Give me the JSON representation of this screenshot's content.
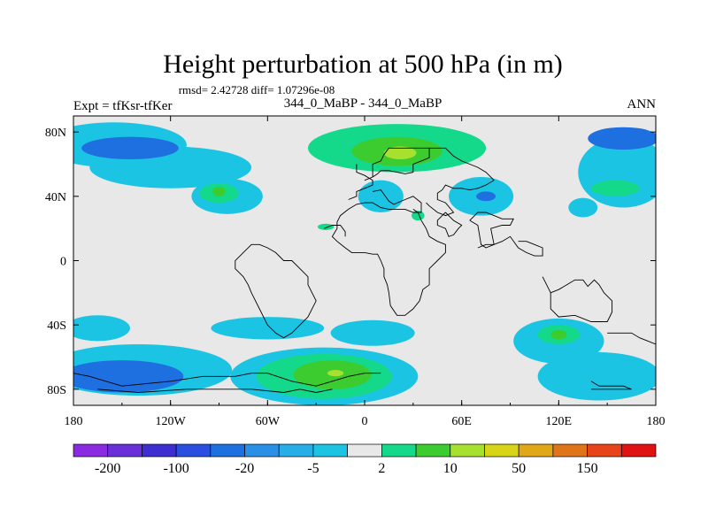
{
  "chart_data": {
    "type": "heatmap",
    "title": "Height perturbation at 500 hPa (in m)",
    "stats": "rmsd= 2.42728 diff= 1.07296e-08",
    "left_label": "Expt = tfKsr-tfKer",
    "center_label": "344_0_MaBP - 344_0_MaBP",
    "right_label": "ANN",
    "xlim": [
      -180,
      180
    ],
    "ylim": [
      -90,
      90
    ],
    "x_ticks": [
      {
        "value": -180,
        "label": "180"
      },
      {
        "value": -120,
        "label": "120W"
      },
      {
        "value": -60,
        "label": "60W"
      },
      {
        "value": 0,
        "label": "0"
      },
      {
        "value": 60,
        "label": "60E"
      },
      {
        "value": 120,
        "label": "120E"
      },
      {
        "value": 180,
        "label": "180"
      }
    ],
    "y_ticks": [
      {
        "value": 80,
        "label": "80N"
      },
      {
        "value": 40,
        "label": "40N"
      },
      {
        "value": 0,
        "label": "0"
      },
      {
        "value": -40,
        "label": "40S"
      },
      {
        "value": -80,
        "label": "80S"
      }
    ],
    "colorbar": {
      "colors": [
        "#8a2be2",
        "#6a2fd8",
        "#3c2ed0",
        "#2a4fe0",
        "#1e6fe0",
        "#2a90e6",
        "#28aee6",
        "#1cc4e4",
        "#e8e8e8",
        "#14d98a",
        "#3ccc30",
        "#a8e030",
        "#d8d418",
        "#e0a818",
        "#e07418",
        "#e8441c",
        "#e01212"
      ],
      "labels": [
        "-200",
        "-100",
        "-20",
        "-5",
        "2",
        "10",
        "50",
        "150"
      ]
    },
    "contour_regions": [
      {
        "level": -5,
        "lon": -155,
        "lat": 72,
        "rlon": 45,
        "rlat": 14
      },
      {
        "level": -5,
        "lon": -120,
        "lat": 58,
        "rlon": 50,
        "rlat": 13
      },
      {
        "level": -5,
        "lon": -85,
        "lat": 40,
        "rlon": 22,
        "rlat": 11
      },
      {
        "level": -20,
        "lon": -145,
        "lat": 70,
        "rlon": 30,
        "rlat": 7
      },
      {
        "level": 2,
        "lon": -90,
        "lat": 42,
        "rlon": 12,
        "rlat": 6
      },
      {
        "level": 10,
        "lon": -90,
        "lat": 43,
        "rlon": 4,
        "rlat": 3
      },
      {
        "level": 2,
        "lon": 20,
        "lat": 70,
        "rlon": 55,
        "rlat": 15
      },
      {
        "level": 10,
        "lon": 20,
        "lat": 68,
        "rlon": 28,
        "rlat": 9
      },
      {
        "level": 50,
        "lon": 22,
        "lat": 67,
        "rlon": 10,
        "rlat": 4
      },
      {
        "level": -5,
        "lon": 72,
        "lat": 40,
        "rlon": 20,
        "rlat": 12
      },
      {
        "level": -20,
        "lon": 75,
        "lat": 40,
        "rlon": 6,
        "rlat": 3
      },
      {
        "level": -5,
        "lon": 135,
        "lat": 33,
        "rlon": 9,
        "rlat": 6
      },
      {
        "level": -5,
        "lon": 160,
        "lat": 55,
        "rlon": 28,
        "rlat": 22
      },
      {
        "level": 2,
        "lon": 155,
        "lat": 45,
        "rlon": 15,
        "rlat": 5
      },
      {
        "level": -20,
        "lon": 160,
        "lat": 76,
        "rlon": 22,
        "rlat": 7
      },
      {
        "level": -5,
        "lon": 10,
        "lat": 40,
        "rlon": 14,
        "rlat": 10
      },
      {
        "level": 2,
        "lon": 33,
        "lat": 28,
        "rlon": 4,
        "rlat": 3
      },
      {
        "level": 2,
        "lon": -24,
        "lat": 21,
        "rlon": 5,
        "rlat": 2
      },
      {
        "level": -5,
        "lon": -165,
        "lat": -42,
        "rlon": 20,
        "rlat": 8
      },
      {
        "level": -5,
        "lon": -60,
        "lat": -42,
        "rlon": 35,
        "rlat": 7
      },
      {
        "level": -5,
        "lon": 5,
        "lat": -45,
        "rlon": 26,
        "rlat": 8
      },
      {
        "level": -5,
        "lon": -140,
        "lat": -68,
        "rlon": 58,
        "rlat": 16
      },
      {
        "level": -20,
        "lon": -150,
        "lat": -72,
        "rlon": 38,
        "rlat": 10
      },
      {
        "level": -5,
        "lon": -25,
        "lat": -72,
        "rlon": 58,
        "rlat": 18
      },
      {
        "level": 2,
        "lon": -25,
        "lat": -72,
        "rlon": 42,
        "rlat": 14
      },
      {
        "level": 10,
        "lon": -20,
        "lat": -71,
        "rlon": 24,
        "rlat": 9
      },
      {
        "level": 50,
        "lon": -18,
        "lat": -70,
        "rlon": 5,
        "rlat": 2
      },
      {
        "level": -5,
        "lon": 120,
        "lat": -50,
        "rlon": 28,
        "rlat": 14
      },
      {
        "level": 2,
        "lon": 120,
        "lat": -46,
        "rlon": 13,
        "rlat": 6
      },
      {
        "level": 10,
        "lon": 120,
        "lat": -46,
        "rlon": 5,
        "rlat": 3
      },
      {
        "level": -5,
        "lon": 145,
        "lat": -72,
        "rlon": 38,
        "rlat": 15
      },
      {
        "level": -5,
        "lon": -160,
        "lat": -45,
        "rlon": 5,
        "rlat": 3
      }
    ],
    "coastlines": [
      [
        [
          5,
          43
        ],
        [
          10,
          44
        ],
        [
          15,
          37
        ],
        [
          18,
          35
        ],
        [
          25,
          38
        ],
        [
          30,
          40
        ],
        [
          35,
          36
        ],
        [
          35,
          30
        ],
        [
          30,
          30
        ],
        [
          25,
          32
        ],
        [
          15,
          32
        ],
        [
          10,
          33
        ],
        [
          5,
          36
        ],
        [
          0,
          36
        ],
        [
          -5,
          35
        ],
        [
          -10,
          32
        ],
        [
          -15,
          28
        ],
        [
          -17,
          24
        ],
        [
          -17,
          20
        ],
        [
          -20,
          15
        ],
        [
          -17,
          12
        ],
        [
          -12,
          8
        ],
        [
          -8,
          5
        ],
        [
          0,
          5
        ],
        [
          5,
          4
        ],
        [
          8,
          4
        ],
        [
          10,
          0
        ],
        [
          12,
          -5
        ],
        [
          12,
          -10
        ],
        [
          14,
          -15
        ],
        [
          15,
          -20
        ],
        [
          16,
          -28
        ],
        [
          20,
          -34
        ],
        [
          25,
          -34
        ],
        [
          30,
          -30
        ],
        [
          34,
          -25
        ],
        [
          36,
          -18
        ],
        [
          40,
          -15
        ],
        [
          40,
          -10
        ],
        [
          40,
          -5
        ],
        [
          45,
          0
        ],
        [
          50,
          5
        ],
        [
          50,
          10
        ],
        [
          45,
          12
        ],
        [
          40,
          15
        ],
        [
          38,
          20
        ],
        [
          35,
          25
        ],
        [
          33,
          30
        ],
        [
          30,
          32
        ]
      ],
      [
        [
          0,
          50
        ],
        [
          5,
          52
        ],
        [
          5,
          60
        ],
        [
          10,
          62
        ],
        [
          12,
          66
        ],
        [
          15,
          70
        ],
        [
          25,
          70
        ],
        [
          30,
          70
        ],
        [
          40,
          70
        ],
        [
          40,
          64
        ],
        [
          35,
          62
        ],
        [
          30,
          60
        ],
        [
          30,
          55
        ],
        [
          25,
          54
        ],
        [
          20,
          55
        ],
        [
          15,
          56
        ],
        [
          10,
          56
        ],
        [
          8,
          54
        ],
        [
          5,
          52
        ]
      ],
      [
        [
          40,
          70
        ],
        [
          50,
          70
        ],
        [
          55,
          65
        ],
        [
          60,
          62
        ],
        [
          65,
          60
        ],
        [
          70,
          58
        ],
        [
          75,
          55
        ],
        [
          80,
          50
        ],
        [
          75,
          47
        ],
        [
          70,
          45
        ],
        [
          65,
          44
        ],
        [
          60,
          45
        ],
        [
          55,
          45
        ],
        [
          50,
          47
        ],
        [
          48,
          44
        ],
        [
          45,
          42
        ],
        [
          45,
          38
        ],
        [
          50,
          36
        ],
        [
          55,
          30
        ],
        [
          50,
          28
        ],
        [
          45,
          30
        ],
        [
          40,
          34
        ],
        [
          38,
          36
        ]
      ],
      [
        [
          50,
          30
        ],
        [
          55,
          25
        ],
        [
          60,
          22
        ],
        [
          58,
          20
        ],
        [
          55,
          16
        ],
        [
          52,
          15
        ],
        [
          50,
          20
        ],
        [
          45,
          22
        ],
        [
          45,
          25
        ],
        [
          48,
          28
        ],
        [
          50,
          30
        ]
      ],
      [
        [
          70,
          8
        ],
        [
          75,
          10
        ],
        [
          80,
          10
        ],
        [
          85,
          12
        ],
        [
          90,
          15
        ],
        [
          95,
          8
        ],
        [
          100,
          5
        ],
        [
          105,
          3
        ],
        [
          110,
          3
        ],
        [
          110,
          8
        ],
        [
          105,
          10
        ],
        [
          100,
          12
        ],
        [
          95,
          12
        ]
      ],
      [
        [
          65,
          25
        ],
        [
          70,
          22
        ],
        [
          72,
          10
        ],
        [
          75,
          8
        ],
        [
          80,
          10
        ],
        [
          78,
          20
        ],
        [
          85,
          22
        ],
        [
          90,
          22
        ],
        [
          92,
          26
        ],
        [
          85,
          26
        ],
        [
          80,
          28
        ],
        [
          75,
          30
        ],
        [
          70,
          30
        ],
        [
          65,
          25
        ]
      ],
      [
        [
          110,
          -10
        ],
        [
          115,
          -20
        ],
        [
          115,
          -30
        ],
        [
          120,
          -35
        ],
        [
          130,
          -34
        ],
        [
          140,
          -38
        ],
        [
          150,
          -38
        ],
        [
          153,
          -32
        ],
        [
          153,
          -25
        ],
        [
          148,
          -20
        ],
        [
          145,
          -15
        ],
        [
          142,
          -12
        ],
        [
          138,
          -16
        ],
        [
          135,
          -12
        ],
        [
          130,
          -12
        ],
        [
          125,
          -15
        ],
        [
          120,
          -18
        ],
        [
          115,
          -20
        ]
      ],
      [
        [
          150,
          -45
        ],
        [
          165,
          -45
        ],
        [
          170,
          -48
        ],
        [
          175,
          -50
        ],
        [
          180,
          -52
        ]
      ],
      [
        [
          140,
          -75
        ],
        [
          145,
          -78
        ],
        [
          155,
          -78
        ],
        [
          160,
          -78
        ],
        [
          165,
          -80
        ],
        [
          150,
          -80
        ],
        [
          140,
          -80
        ]
      ],
      [
        [
          -180,
          -70
        ],
        [
          -170,
          -72
        ],
        [
          -160,
          -75
        ],
        [
          -150,
          -78
        ],
        [
          -120,
          -75
        ],
        [
          -100,
          -72
        ],
        [
          -80,
          -72
        ],
        [
          -70,
          -70
        ],
        [
          -60,
          -70
        ],
        [
          -45,
          -75
        ],
        [
          -30,
          -78
        ],
        [
          -20,
          -75
        ],
        [
          -10,
          -72
        ],
        [
          0,
          -70
        ],
        [
          10,
          -70
        ]
      ],
      [
        [
          -165,
          -80
        ],
        [
          -140,
          -82
        ],
        [
          -110,
          -80
        ],
        [
          -90,
          -80
        ],
        [
          -70,
          -80
        ],
        [
          -50,
          -82
        ],
        [
          -40,
          -80
        ],
        [
          -30,
          -82
        ],
        [
          -20,
          -80
        ]
      ],
      [
        [
          -70,
          -20
        ],
        [
          -65,
          -30
        ],
        [
          -60,
          -40
        ],
        [
          -55,
          -45
        ],
        [
          -50,
          -48
        ],
        [
          -45,
          -45
        ],
        [
          -40,
          -40
        ],
        [
          -35,
          -35
        ],
        [
          -30,
          -25
        ],
        [
          -35,
          -15
        ],
        [
          -35,
          -10
        ],
        [
          -40,
          -5
        ],
        [
          -45,
          0
        ],
        [
          -50,
          0
        ],
        [
          -55,
          5
        ],
        [
          -60,
          8
        ],
        [
          -65,
          10
        ],
        [
          -70,
          10
        ],
        [
          -75,
          5
        ],
        [
          -80,
          0
        ],
        [
          -80,
          -5
        ],
        [
          -75,
          -10
        ],
        [
          -72,
          -15
        ],
        [
          -70,
          -20
        ]
      ],
      [
        [
          -10,
          38
        ],
        [
          -5,
          40
        ],
        [
          -5,
          43
        ],
        [
          0,
          45
        ],
        [
          5,
          47
        ],
        [
          5,
          50
        ],
        [
          0,
          53
        ],
        [
          -5,
          55
        ],
        [
          -5,
          58
        ],
        [
          -5,
          60
        ]
      ],
      [
        [
          -25,
          20
        ],
        [
          -20,
          22
        ],
        [
          -15,
          22
        ],
        [
          -12,
          18
        ],
        [
          -12,
          15
        ]
      ]
    ]
  }
}
